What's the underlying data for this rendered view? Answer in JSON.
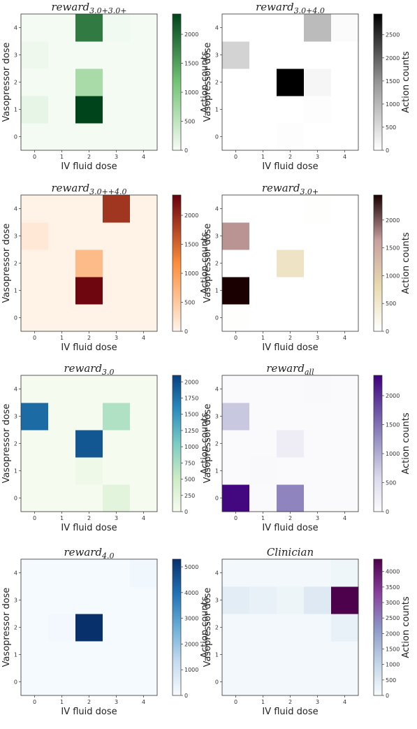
{
  "figure": {
    "xlabel": "IV fluid dose",
    "ylabel": "Vasopressor dose",
    "colorbar_label": "Action counts"
  },
  "chart_data": [
    {
      "type": "heatmap",
      "title": "reward3.0+3.0+",
      "title_main": "reward",
      "title_sub": "3.0+3.0+",
      "xlabel": "IV fluid dose",
      "ylabel": "Vasopressor dose",
      "colorbar_label": "Action counts",
      "x_ticks": [
        "0",
        "1",
        "2",
        "3",
        "4"
      ],
      "y_ticks": [
        "0",
        "1",
        "2",
        "3",
        "4"
      ],
      "vmin": 0,
      "vmax": 2350,
      "colorbar_ticks": [
        0,
        500,
        1000,
        1500,
        2000
      ],
      "colormap": {
        "low": "#f7fcf5",
        "mid": "#74c476",
        "high": "#00441b"
      },
      "values": [
        [
          30,
          30,
          30,
          30,
          30
        ],
        [
          150,
          30,
          2350,
          30,
          30
        ],
        [
          30,
          30,
          700,
          30,
          30
        ],
        [
          80,
          30,
          30,
          30,
          30
        ],
        [
          30,
          30,
          1850,
          50,
          30
        ]
      ]
    },
    {
      "type": "heatmap",
      "title": "reward3.0+4.0",
      "title_main": "reward",
      "title_sub": "3.0+4.0",
      "xlabel": "IV fluid dose",
      "ylabel": "Vasopressor dose",
      "colorbar_label": "Action counts",
      "x_ticks": [
        "0",
        "1",
        "2",
        "3",
        "4"
      ],
      "y_ticks": [
        "0",
        "1",
        "2",
        "3",
        "4"
      ],
      "vmin": 0,
      "vmax": 2950,
      "colorbar_ticks": [
        0,
        500,
        1000,
        1500,
        2000,
        2500
      ],
      "colormap": {
        "low": "#ffffff",
        "mid": "#969696",
        "high": "#000000"
      },
      "values": [
        [
          0,
          0,
          30,
          0,
          0
        ],
        [
          0,
          0,
          0,
          30,
          0
        ],
        [
          0,
          0,
          2950,
          120,
          0
        ],
        [
          620,
          0,
          0,
          0,
          0
        ],
        [
          0,
          0,
          0,
          950,
          50
        ]
      ]
    },
    {
      "type": "heatmap",
      "title": "reward3.0++4.0",
      "title_main": "reward",
      "title_sub": "3.0++4.0",
      "xlabel": "IV fluid dose",
      "ylabel": "Vasopressor dose",
      "colorbar_label": "Action counts",
      "x_ticks": [
        "0",
        "1",
        "2",
        "3",
        "4"
      ],
      "y_ticks": [
        "0",
        "1",
        "2",
        "3",
        "4"
      ],
      "vmin": 0,
      "vmax": 2350,
      "colorbar_ticks": [
        0,
        500,
        1000,
        1500,
        2000
      ],
      "colormap": {
        "low": "#fff5eb",
        "mid": "#fd8d3c",
        "high": "#67000d",
        "kind": "OrRd"
      },
      "values": [
        [
          20,
          20,
          20,
          20,
          20
        ],
        [
          20,
          20,
          2300,
          20,
          20
        ],
        [
          20,
          20,
          650,
          20,
          20
        ],
        [
          150,
          20,
          20,
          20,
          20
        ],
        [
          20,
          20,
          20,
          1900,
          20
        ]
      ]
    },
    {
      "type": "heatmap",
      "title": "reward3.0+",
      "title_main": "reward",
      "title_sub": "3.0+",
      "xlabel": "IV fluid dose",
      "ylabel": "Vasopressor dose",
      "colorbar_label": "Action counts",
      "x_ticks": [
        "0",
        "1",
        "2",
        "3",
        "4"
      ],
      "y_ticks": [
        "0",
        "1",
        "2",
        "3",
        "4"
      ],
      "vmin": 0,
      "vmax": 2450,
      "colorbar_ticks": [
        0,
        500,
        1000,
        1500,
        2000
      ],
      "colormap": {
        "kind": "pink_r",
        "stops": [
          "#ffffff",
          "#e8dab0",
          "#c8a0a0",
          "#1a0000"
        ]
      },
      "values": [
        [
          20,
          0,
          0,
          0,
          0
        ],
        [
          2450,
          0,
          0,
          0,
          0
        ],
        [
          0,
          0,
          600,
          0,
          0
        ],
        [
          1700,
          0,
          0,
          0,
          0
        ],
        [
          0,
          0,
          0,
          20,
          0
        ]
      ]
    },
    {
      "type": "heatmap",
      "title": "reward3.0",
      "title_main": "reward",
      "title_sub": "3.0",
      "xlabel": "IV fluid dose",
      "ylabel": "Vasopressor dose",
      "colorbar_label": "Action counts",
      "x_ticks": [
        "0",
        "1",
        "2",
        "3",
        "4"
      ],
      "y_ticks": [
        "0",
        "1",
        "2",
        "3",
        "4"
      ],
      "vmin": 0,
      "vmax": 2100,
      "colorbar_ticks": [
        0,
        250,
        500,
        750,
        1000,
        1250,
        1500,
        1750,
        2000
      ],
      "colormap": {
        "kind": "GnBu",
        "stops": [
          "#f7fcf0",
          "#ccebc5",
          "#7bccc4",
          "#2b8cbe",
          "#084081"
        ]
      },
      "values": [
        [
          30,
          30,
          30,
          250,
          30
        ],
        [
          30,
          30,
          100,
          30,
          30
        ],
        [
          30,
          30,
          1950,
          30,
          30
        ],
        [
          1800,
          30,
          30,
          700,
          30
        ],
        [
          30,
          30,
          30,
          30,
          30
        ]
      ]
    },
    {
      "type": "heatmap",
      "title": "rewardall",
      "title_main": "reward",
      "title_sub": "all",
      "xlabel": "IV fluid dose",
      "ylabel": "Vasopressor dose",
      "colorbar_label": "Action counts",
      "x_ticks": [
        "0",
        "1",
        "2",
        "3",
        "4"
      ],
      "y_ticks": [
        "0",
        "1",
        "2",
        "3",
        "4"
      ],
      "vmin": 0,
      "vmax": 2350,
      "colorbar_ticks": [
        0,
        500,
        1000,
        1500,
        2000
      ],
      "colormap": {
        "kind": "Purples",
        "stops": [
          "#fcfbfd",
          "#dadaeb",
          "#9e9ac8",
          "#6a51a3",
          "#3f007d"
        ]
      },
      "values": [
        [
          2300,
          30,
          1350,
          30,
          30
        ],
        [
          30,
          50,
          30,
          30,
          30
        ],
        [
          30,
          30,
          250,
          30,
          30
        ],
        [
          750,
          30,
          30,
          30,
          30
        ],
        [
          30,
          30,
          30,
          50,
          30
        ]
      ]
    },
    {
      "type": "heatmap",
      "title": "reward4.0",
      "title_main": "reward",
      "title_sub": "4.0",
      "xlabel": "IV fluid dose",
      "ylabel": "Vasopressor dose",
      "colorbar_label": "Action counts",
      "x_ticks": [
        "0",
        "1",
        "2",
        "3",
        "4"
      ],
      "y_ticks": [
        "0",
        "1",
        "2",
        "3",
        "4"
      ],
      "vmin": 0,
      "vmax": 5300,
      "colorbar_ticks": [
        0,
        1000,
        2000,
        3000,
        4000,
        5000
      ],
      "colormap": {
        "kind": "Blues",
        "stops": [
          "#f7fbff",
          "#c6dbef",
          "#6baed6",
          "#2171b5",
          "#08306b"
        ]
      },
      "values": [
        [
          60,
          60,
          60,
          60,
          60
        ],
        [
          60,
          60,
          60,
          60,
          60
        ],
        [
          60,
          120,
          5300,
          60,
          60
        ],
        [
          60,
          60,
          60,
          60,
          60
        ],
        [
          60,
          60,
          60,
          60,
          180
        ]
      ]
    },
    {
      "type": "heatmap",
      "title": "Clinician",
      "title_main": "Clinician",
      "title_sub": "",
      "xlabel": "IV fluid dose",
      "ylabel": "Vasopressor dose",
      "colorbar_label": "Action counts",
      "x_ticks": [
        "0",
        "1",
        "2",
        "3",
        "4"
      ],
      "y_ticks": [
        "0",
        "1",
        "2",
        "3",
        "4"
      ],
      "vmin": 0,
      "vmax": 4400,
      "colorbar_ticks": [
        0,
        500,
        1000,
        1500,
        2000,
        2500,
        3000,
        3500,
        4000
      ],
      "colormap": {
        "kind": "BuPu",
        "stops": [
          "#f7fcfd",
          "#bfd3e6",
          "#8c96c6",
          "#88419d",
          "#4d004b"
        ]
      },
      "values": [
        [
          100,
          100,
          100,
          100,
          100
        ],
        [
          100,
          100,
          100,
          100,
          100
        ],
        [
          100,
          100,
          100,
          100,
          300
        ],
        [
          400,
          300,
          200,
          500,
          4400
        ],
        [
          100,
          100,
          100,
          100,
          150
        ]
      ]
    }
  ]
}
